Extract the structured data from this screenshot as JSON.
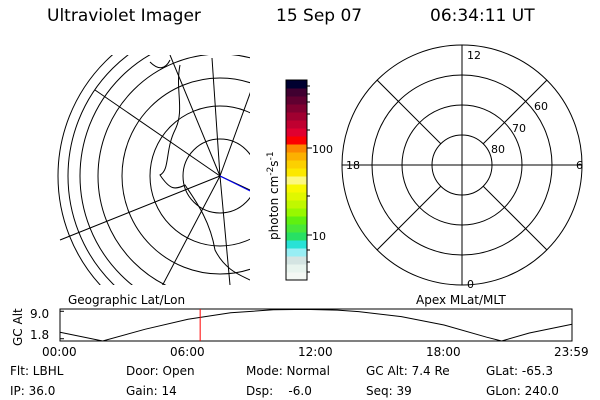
{
  "header": {
    "instrument": "Ultraviolet Imager",
    "date": "15 Sep 07",
    "time": "06:34:11 UT"
  },
  "colorbar": {
    "label": "photon cm",
    "label_sup1": "-2",
    "label_mid": "s",
    "label_sup2": "-1",
    "tick_labels": [
      "100",
      "10"
    ],
    "colors": [
      "#f4f8f4",
      "#e8f4ee",
      "#d4e4e2",
      "#98eef4",
      "#28e2d6",
      "#28e064",
      "#48e838",
      "#60f010",
      "#98f800",
      "#c0f800",
      "#e0f800",
      "#f8f800",
      "#fcf880",
      "#fce800",
      "#fcd000",
      "#fcb000",
      "#fc8800",
      "#fc0000",
      "#e00030",
      "#c00030",
      "#a00030",
      "#800030",
      "#600030",
      "#400030",
      "#000030"
    ]
  },
  "left_map": {
    "label": "Geographic Lat/Lon"
  },
  "right_map": {
    "label": "Apex MLat/MLT",
    "mlt_labels": [
      "12",
      "6",
      "0",
      "18"
    ],
    "lat_labels": [
      "60",
      "70",
      "80"
    ]
  },
  "chart_data": {
    "type": "line",
    "ylabel": "GC Alt",
    "ytick_labels": [
      "9.0",
      "1.8"
    ],
    "xtick_labels": [
      "00:00",
      "06:00",
      "12:00",
      "18:00",
      "23:59"
    ],
    "ylim": [
      1.2,
      9.6
    ],
    "x_hours": [
      0,
      2,
      4,
      6,
      8,
      10,
      11.5,
      13,
      14,
      16,
      18,
      20,
      20.7,
      22,
      24
    ],
    "values": [
      3.5,
      1.2,
      4.3,
      6.9,
      8.6,
      9.4,
      9.5,
      9.3,
      8.9,
      7.6,
      5.4,
      2.2,
      1.2,
      3.3,
      5.6
    ],
    "current_time_hours": 6.57,
    "current_marker_color": "#ff0000"
  },
  "status": {
    "row1": [
      "Flt: LBHL",
      "Door: Open",
      "Mode: Normal",
      "GC Alt: 7.4 Re",
      "GLat: -65.3"
    ],
    "row2": [
      "IP: 36.0",
      "Gain: 14",
      "Dsp:    -6.0",
      "Seq: 39",
      "GLon: 240.0"
    ]
  }
}
